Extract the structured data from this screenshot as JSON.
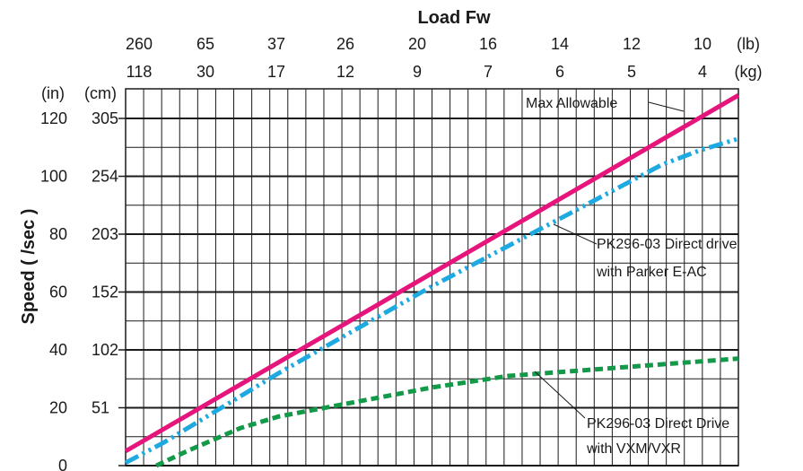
{
  "chart_data": {
    "type": "line",
    "title": "Load Fw",
    "ylabel": "Speed ( /sec )",
    "ylim": [
      0,
      128
    ],
    "grid": true,
    "top_axis": {
      "unit_lb": "(lb)",
      "unit_kg": "(kg)",
      "lb": [
        "260",
        "65",
        "37",
        "26",
        "20",
        "16",
        "14",
        "12",
        "10"
      ],
      "kg": [
        "118",
        "30",
        "17",
        "12",
        "9",
        "7",
        "6",
        "5",
        "4"
      ]
    },
    "y_units": {
      "in": "(in)",
      "cm": "(cm)"
    },
    "y_ticks_in": [
      "120",
      "100",
      "80",
      "60",
      "40",
      "20",
      "0"
    ],
    "y_ticks_cm": [
      "305",
      "254",
      "203",
      "152",
      "102",
      "51",
      ""
    ],
    "series": [
      {
        "name": "Max Allowable",
        "color": "#e6157c",
        "style": "solid",
        "x": [
          0.0,
          8.0
        ],
        "y": [
          5,
          128
        ]
      },
      {
        "name": "PK296-03 Direct drive with Parker E-AC",
        "color": "#1fa9e1",
        "style": "dash-dot-dot",
        "x": [
          0.0,
          0.5,
          1.0,
          2.0,
          3.0,
          4.0,
          5.0,
          6.0,
          7.0,
          7.5,
          8.0
        ],
        "y": [
          1,
          8,
          16,
          32,
          47,
          62,
          76,
          90,
          104,
          109,
          113
        ]
      },
      {
        "name": "PK296-03 Direct Drive with VXM/VXR",
        "color": "#139a48",
        "style": "dashed",
        "x": [
          0.4,
          0.8,
          1.5,
          2.0,
          3.0,
          4.0,
          5.0,
          6.0,
          7.0,
          8.0
        ],
        "y": [
          0,
          5,
          13,
          17,
          22,
          27,
          31,
          33,
          35,
          37
        ]
      }
    ],
    "annotations": [
      {
        "lines": [
          "Max Allowable"
        ]
      },
      {
        "lines": [
          "PK296-03 Direct drive",
          "with Parker E-AC"
        ]
      },
      {
        "lines": [
          "PK296-03 Direct Drive",
          "with VXM/VXR"
        ]
      }
    ]
  }
}
